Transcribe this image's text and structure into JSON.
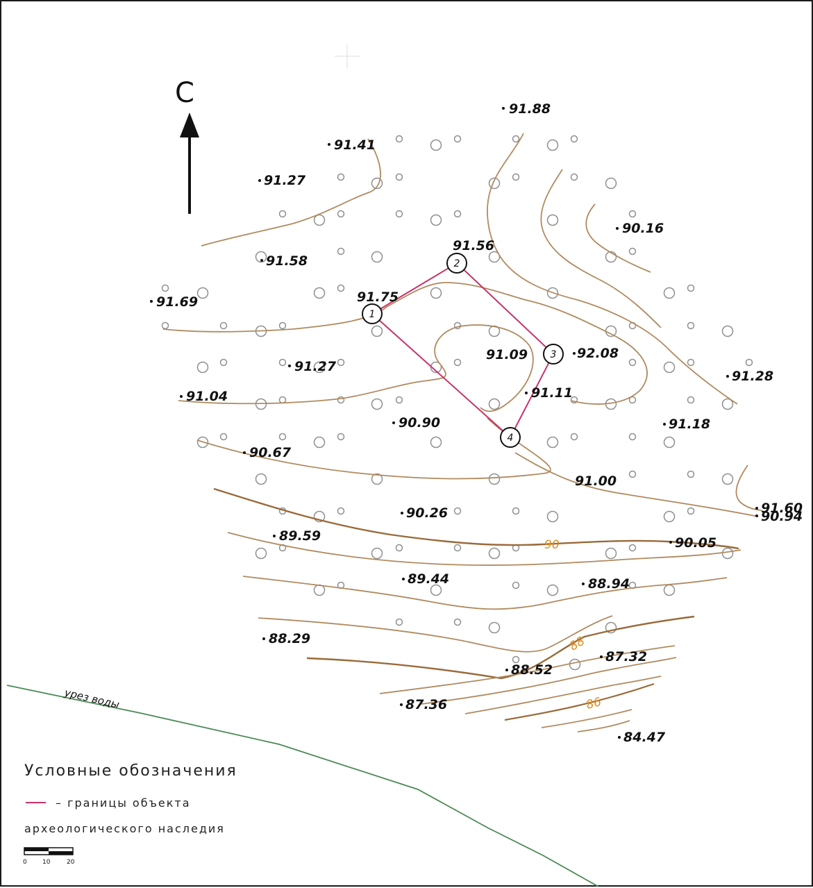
{
  "north": {
    "label": "С"
  },
  "elevations": [
    {
      "id": "e1",
      "label": "91.88"
    },
    {
      "id": "e2",
      "label": "91.41"
    },
    {
      "id": "e3",
      "label": "91.27"
    },
    {
      "id": "e4",
      "label": "90.16"
    },
    {
      "id": "e5",
      "label": "91.58"
    },
    {
      "id": "e6",
      "label": "91.56"
    },
    {
      "id": "e7",
      "label": "91.75"
    },
    {
      "id": "e8",
      "label": "91.69"
    },
    {
      "id": "e9",
      "label": "91.27"
    },
    {
      "id": "e10",
      "label": "91.09"
    },
    {
      "id": "e11",
      "label": "92.08"
    },
    {
      "id": "e12",
      "label": "91.28"
    },
    {
      "id": "e13",
      "label": "91.04"
    },
    {
      "id": "e14",
      "label": "91.11"
    },
    {
      "id": "e15",
      "label": "90.90"
    },
    {
      "id": "e16",
      "label": "91.18"
    },
    {
      "id": "e17",
      "label": "90.67"
    },
    {
      "id": "e18",
      "label": "91.00"
    },
    {
      "id": "e19",
      "label": "91.60"
    },
    {
      "id": "e20",
      "label": "90.94"
    },
    {
      "id": "e21",
      "label": "90.26"
    },
    {
      "id": "e22",
      "label": "89.59"
    },
    {
      "id": "e23",
      "label": "90.05"
    },
    {
      "id": "e24",
      "label": "89.44"
    },
    {
      "id": "e25",
      "label": "88.94"
    },
    {
      "id": "e26",
      "label": "88.29"
    },
    {
      "id": "e27",
      "label": "87.32"
    },
    {
      "id": "e28",
      "label": "88.52"
    },
    {
      "id": "e29",
      "label": "87.36"
    },
    {
      "id": "e30",
      "label": "84.47"
    }
  ],
  "contour_labels": [
    "90",
    "88",
    "86"
  ],
  "boundary_points": [
    "1",
    "2",
    "3",
    "4"
  ],
  "water_edge_label": "урез воды",
  "colors": {
    "contour": "#b08a5e",
    "boundary": "#c8326a",
    "water_edge": "#4a8a55",
    "contour_label": "#e08a1a"
  },
  "legend": {
    "title": "Условные обозначения",
    "item_line1": "– границы объекта",
    "item_line2": "археологического наследия"
  },
  "scale": {
    "ticks": [
      "0",
      "10",
      "20"
    ]
  }
}
